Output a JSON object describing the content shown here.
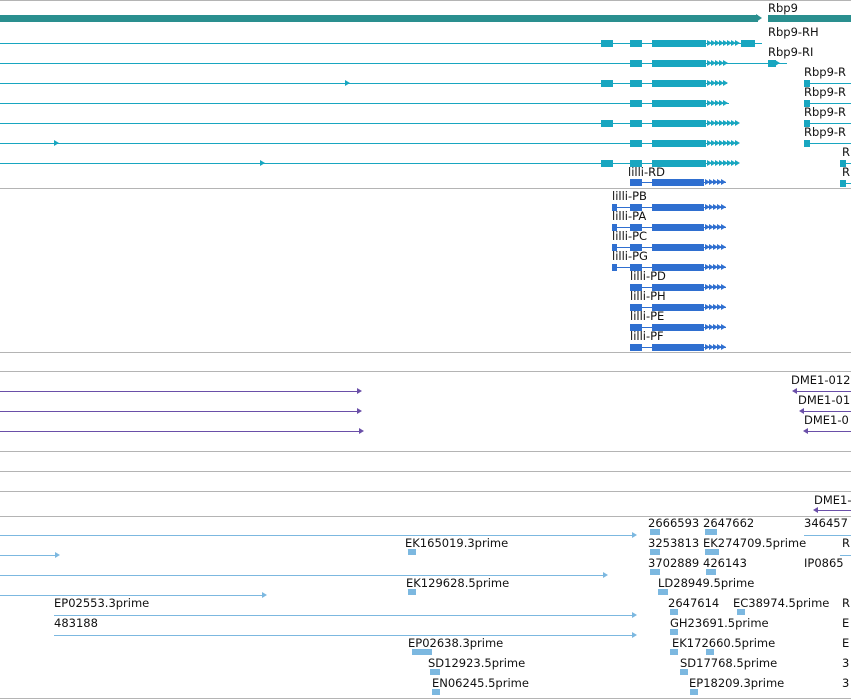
{
  "colors": {
    "rbp9": "#2a8f8f",
    "teal": "#18a6c0",
    "blue": "#2f6fd0",
    "purple": "#6a4fa8",
    "light_blue": "#7cb8e0",
    "divider": "#b4b4b4",
    "line_gray": "#8c8c8c"
  },
  "gene": {
    "label": "Rbp9"
  },
  "rbp9_transcripts": [
    "Rbp9-RH",
    "Rbp9-RI",
    "Rbp9-R",
    "Rbp9-R",
    "Rbp9-R",
    "Rbp9-R",
    "R",
    "R"
  ],
  "lilli_transcripts": [
    "lilli-RD",
    "lilli-PB",
    "lilli-PA",
    "lilli-PC",
    "lilli-PG",
    "lilli-PD",
    "lilli-PH",
    "lilli-PE",
    "lilli-PF"
  ],
  "dme_features": [
    "DME1-012",
    "DME1-01",
    "DME1-0",
    "DME1-"
  ],
  "est_labels": [
    "2666593",
    "2647662",
    "346457",
    "3253813",
    "EK274709.5prime",
    "R",
    "EK165019.3prime",
    "3702889",
    "426143",
    "IP0865",
    "EK129628.5prime",
    "LD28949.5prime",
    "EP02553.3prime",
    "2647614",
    "EC38974.5prime",
    "R",
    "483188",
    "GH23691.5prime",
    "E",
    "EP02638.3prime",
    "EK172660.5prime",
    "E",
    "SD12923.5prime",
    "SD17768.5prime",
    "3",
    "EN06245.5prime",
    "EP18209.3prime",
    "3"
  ]
}
